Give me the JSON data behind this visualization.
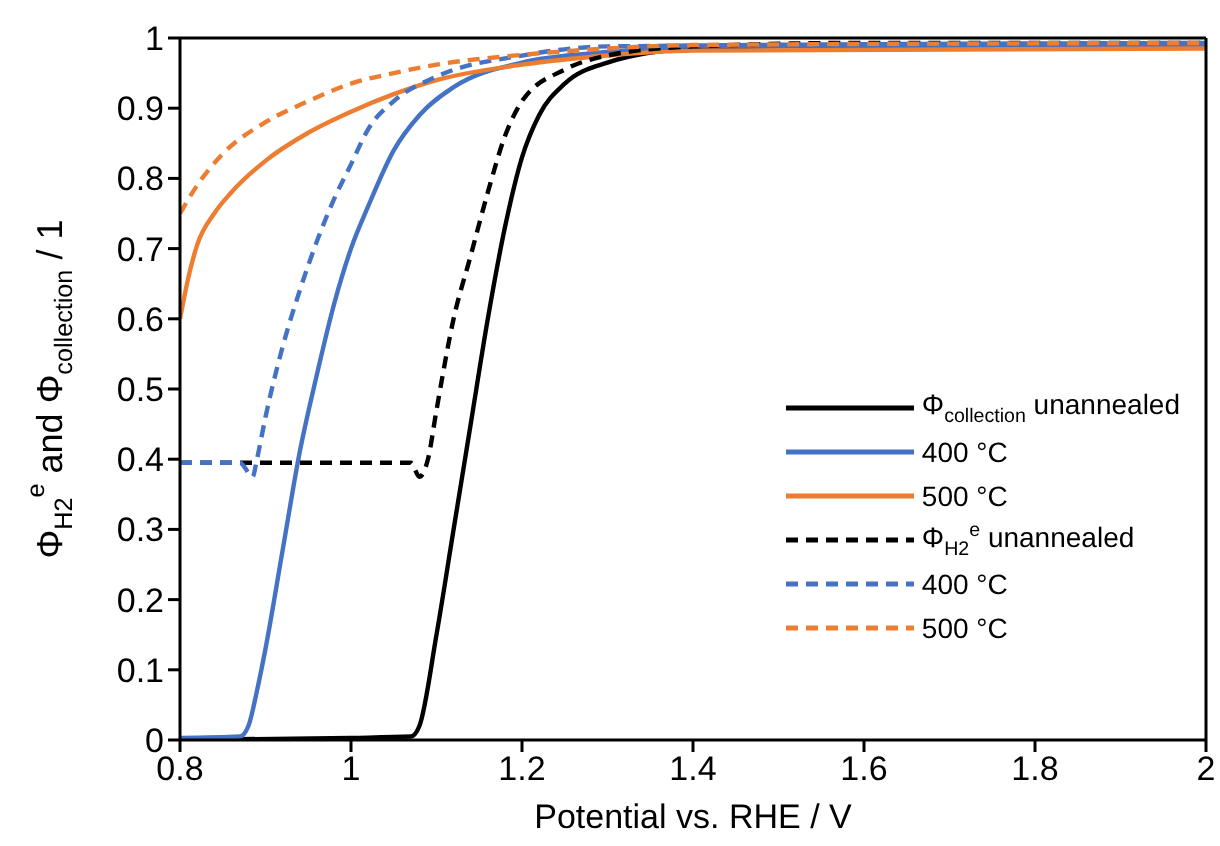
{
  "chart_data": {
    "type": "line",
    "xlabel": "Potential vs. RHE / V",
    "ylabel": "Φ$_{H2}$$^{e}$ and Φ$_{collection}$ / 1",
    "xlim": [
      0.8,
      2
    ],
    "xticks": [
      0.8,
      1,
      1.2,
      1.4,
      1.6,
      1.8,
      2
    ],
    "ylim": [
      0,
      1
    ],
    "yticks": [
      0,
      0.1,
      0.2,
      0.3,
      0.4,
      0.5,
      0.6,
      0.7,
      0.8,
      0.9,
      1
    ],
    "legend": "right",
    "marker": "none",
    "series": [
      {
        "name": "Φ$_{collection}$ unannealed",
        "color": "#000000",
        "line_style": "solid",
        "x": [
          0.8,
          1.0,
          1.07,
          1.08,
          1.1,
          1.12,
          1.14,
          1.16,
          1.18,
          1.2,
          1.22,
          1.25,
          1.3,
          1.4,
          1.6,
          2
        ],
        "values": [
          0,
          0.003,
          0.005,
          0.02,
          0.15,
          0.3,
          0.45,
          0.6,
          0.73,
          0.83,
          0.89,
          0.935,
          0.965,
          0.985,
          0.99,
          0.99
        ]
      },
      {
        "name": "400 °C",
        "color": "#4472c4",
        "line_style": "solid",
        "x": [
          0.8,
          0.87,
          0.88,
          0.89,
          0.9,
          0.92,
          0.94,
          0.96,
          0.98,
          1.0,
          1.02,
          1.05,
          1.08,
          1.12,
          1.2,
          1.3,
          1.4,
          2
        ],
        "values": [
          0.003,
          0.005,
          0.02,
          0.07,
          0.13,
          0.27,
          0.41,
          0.52,
          0.62,
          0.7,
          0.76,
          0.84,
          0.89,
          0.93,
          0.965,
          0.98,
          0.988,
          0.99
        ]
      },
      {
        "name": "500 °C",
        "color": "#ed7d31",
        "line_style": "solid",
        "x": [
          0.8,
          0.81,
          0.82,
          0.84,
          0.86,
          0.9,
          0.95,
          1.0,
          1.05,
          1.1,
          1.2,
          1.3,
          1.4,
          2
        ],
        "values": [
          0.6,
          0.66,
          0.705,
          0.75,
          0.78,
          0.825,
          0.865,
          0.895,
          0.92,
          0.94,
          0.962,
          0.975,
          0.982,
          0.985
        ]
      },
      {
        "name": "Φ$_{H2}$$^{e}$ unannealed",
        "color": "#000000",
        "line_style": "dashed",
        "x": [
          0.8,
          1.07,
          1.08,
          1.09,
          1.1,
          1.12,
          1.14,
          1.16,
          1.18,
          1.2,
          1.25,
          1.3,
          1.4,
          1.6,
          2
        ],
        "values": [
          0.395,
          0.395,
          0.375,
          0.4,
          0.47,
          0.6,
          0.69,
          0.78,
          0.86,
          0.91,
          0.955,
          0.975,
          0.988,
          0.993,
          0.993
        ]
      },
      {
        "name": "400 °C",
        "color": "#4472c4",
        "line_style": "dashed",
        "x": [
          0.8,
          0.87,
          0.885,
          0.89,
          0.9,
          0.92,
          0.94,
          0.96,
          0.98,
          1.0,
          1.02,
          1.05,
          1.1,
          1.2,
          1.3,
          2
        ],
        "values": [
          0.395,
          0.395,
          0.375,
          0.4,
          0.46,
          0.56,
          0.64,
          0.71,
          0.77,
          0.82,
          0.87,
          0.91,
          0.945,
          0.975,
          0.988,
          0.993
        ]
      },
      {
        "name": "500 °C",
        "color": "#ed7d31",
        "line_style": "dashed",
        "x": [
          0.8,
          0.82,
          0.85,
          0.9,
          0.95,
          1.0,
          1.05,
          1.1,
          1.2,
          1.3,
          1.4,
          2
        ],
        "values": [
          0.75,
          0.79,
          0.835,
          0.88,
          0.91,
          0.935,
          0.95,
          0.962,
          0.976,
          0.985,
          0.99,
          0.993
        ]
      }
    ]
  }
}
